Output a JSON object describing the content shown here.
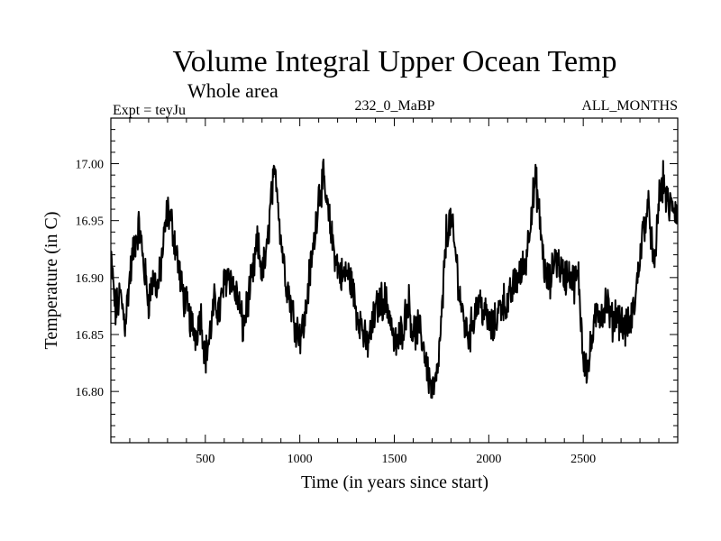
{
  "chart_data": {
    "type": "line",
    "title": "Volume Integral Upper Ocean Temp",
    "subtitle": "Whole area",
    "expt_label": "Expt = teyJu",
    "run_label": "232_0_MaBP",
    "months_label": "ALL_MONTHS",
    "xlabel": "Time (in years since start)",
    "ylabel": "Temperature (in C)",
    "xlim": [
      0,
      3000
    ],
    "ylim": [
      16.755,
      17.04
    ],
    "x_ticks": [
      500,
      1000,
      1500,
      2000,
      2500
    ],
    "x_tick_labels": [
      "500",
      "1000",
      "1500",
      "2000",
      "2500"
    ],
    "y_ticks": [
      16.8,
      16.85,
      16.9,
      16.95,
      17.0
    ],
    "y_tick_labels": [
      "16.80",
      "16.85",
      "16.90",
      "16.95",
      "17.00"
    ],
    "grid": false,
    "series": [
      {
        "name": "Temperature",
        "x": [
          0,
          25,
          50,
          75,
          100,
          125,
          150,
          175,
          200,
          225,
          250,
          275,
          300,
          325,
          350,
          375,
          400,
          425,
          450,
          475,
          500,
          525,
          550,
          575,
          600,
          625,
          650,
          675,
          700,
          725,
          750,
          775,
          800,
          825,
          850,
          875,
          900,
          925,
          950,
          975,
          1000,
          1025,
          1050,
          1075,
          1100,
          1125,
          1150,
          1175,
          1200,
          1225,
          1250,
          1275,
          1300,
          1325,
          1350,
          1375,
          1400,
          1425,
          1450,
          1475,
          1500,
          1525,
          1550,
          1575,
          1600,
          1625,
          1650,
          1675,
          1700,
          1725,
          1750,
          1775,
          1800,
          1825,
          1850,
          1875,
          1900,
          1925,
          1950,
          1975,
          2000,
          2025,
          2050,
          2075,
          2100,
          2125,
          2150,
          2175,
          2200,
          2225,
          2250,
          2275,
          2300,
          2325,
          2350,
          2375,
          2400,
          2425,
          2450,
          2475,
          2500,
          2525,
          2550,
          2575,
          2600,
          2625,
          2650,
          2675,
          2700,
          2725,
          2750,
          2775,
          2800,
          2825,
          2850,
          2875,
          2900,
          2925,
          2950,
          2975,
          3000
        ],
        "values": [
          16.918,
          16.87,
          16.885,
          16.86,
          16.9,
          16.93,
          16.945,
          16.91,
          16.88,
          16.9,
          16.89,
          16.925,
          16.96,
          16.945,
          16.92,
          16.89,
          16.875,
          16.86,
          16.85,
          16.87,
          16.83,
          16.85,
          16.88,
          16.87,
          16.895,
          16.905,
          16.89,
          16.88,
          16.855,
          16.88,
          16.9,
          16.93,
          16.905,
          16.92,
          16.975,
          16.99,
          16.935,
          16.9,
          16.88,
          16.86,
          16.85,
          16.86,
          16.9,
          16.93,
          16.975,
          16.985,
          16.955,
          16.93,
          16.91,
          16.9,
          16.905,
          16.895,
          16.87,
          16.86,
          16.84,
          16.85,
          16.87,
          16.88,
          16.88,
          16.87,
          16.84,
          16.845,
          16.86,
          16.88,
          16.85,
          16.855,
          16.845,
          16.82,
          16.8,
          16.81,
          16.86,
          16.94,
          16.95,
          16.92,
          16.88,
          16.855,
          16.85,
          16.87,
          16.88,
          16.87,
          16.86,
          16.855,
          16.87,
          16.88,
          16.875,
          16.89,
          16.9,
          16.905,
          16.92,
          16.96,
          16.985,
          16.94,
          16.9,
          16.895,
          16.92,
          16.91,
          16.9,
          16.905,
          16.895,
          16.9,
          16.83,
          16.82,
          16.85,
          16.87,
          16.87,
          16.88,
          16.86,
          16.87,
          16.86,
          16.855,
          16.86,
          16.88,
          16.92,
          16.95,
          16.96,
          16.9,
          16.97,
          16.985,
          16.96,
          16.965,
          16.955
        ]
      }
    ]
  }
}
